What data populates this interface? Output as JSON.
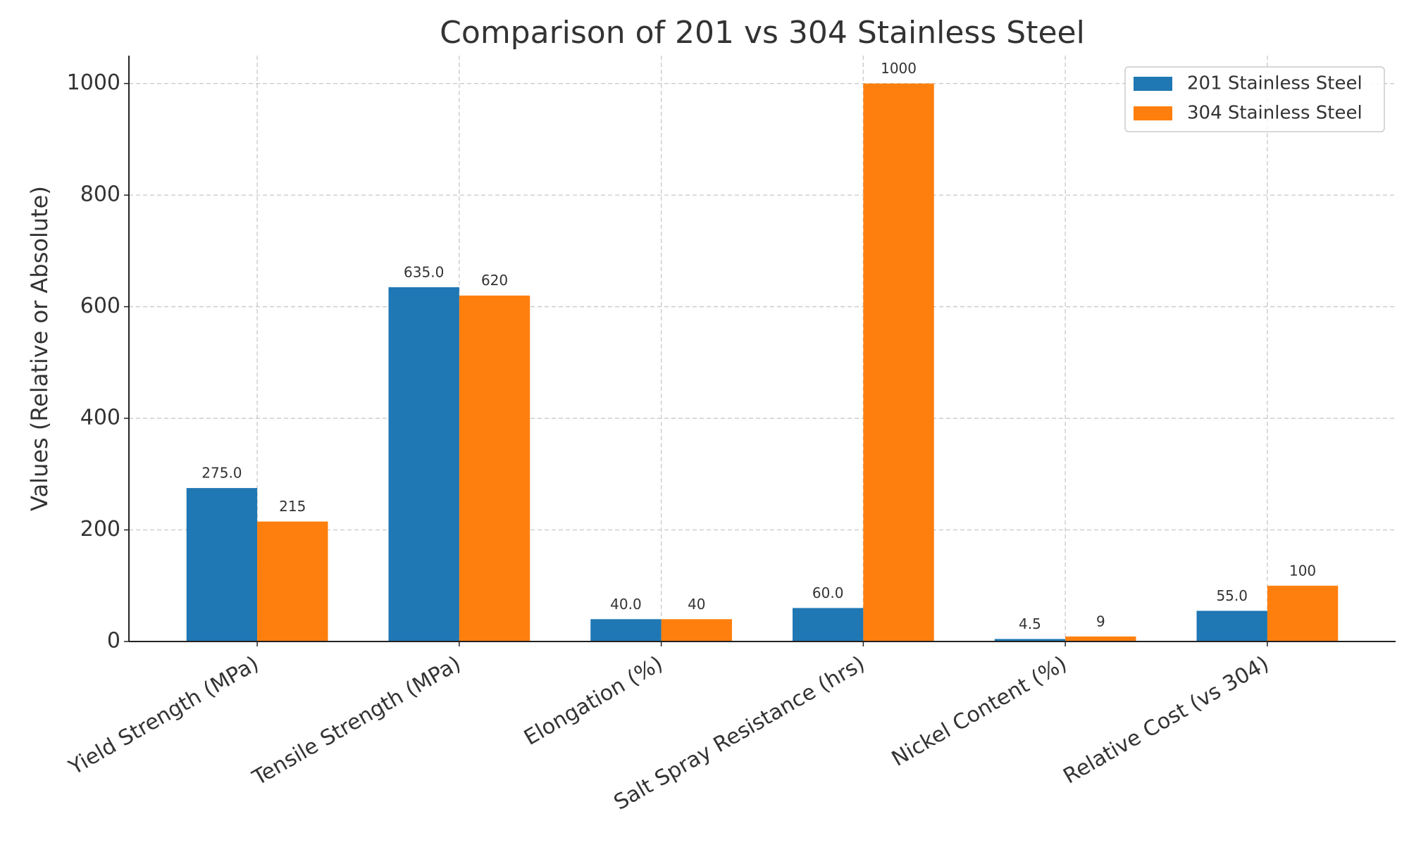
{
  "chart_data": {
    "type": "bar",
    "title": "Comparison of 201 vs 304 Stainless Steel",
    "y_label": "Values (Relative or Absolute)",
    "categories": [
      "Yield Strength (MPa)",
      "Tensile Strength (MPa)",
      "Elongation (%)",
      "Salt Spray Resistance (hrs)",
      "Nickel Content (%)",
      "Relative Cost (vs 304)"
    ],
    "series": [
      {
        "name": "201 Stainless Steel",
        "color": "#1f77b4",
        "values": [
          275,
          635,
          40,
          60,
          4.5,
          55
        ],
        "value_labels": [
          "275.0",
          "635.0",
          "40.0",
          "60.0",
          "4.5",
          "55.0"
        ]
      },
      {
        "name": "304 Stainless Steel",
        "color": "#ff7f0e",
        "values": [
          215,
          620,
          40,
          1000,
          9,
          100
        ]
      }
    ],
    "ylim": [
      0,
      1050
    ],
    "yticks": [
      0,
      200,
      400,
      600,
      800,
      1000
    ],
    "grid": true,
    "legend": "upper right"
  }
}
